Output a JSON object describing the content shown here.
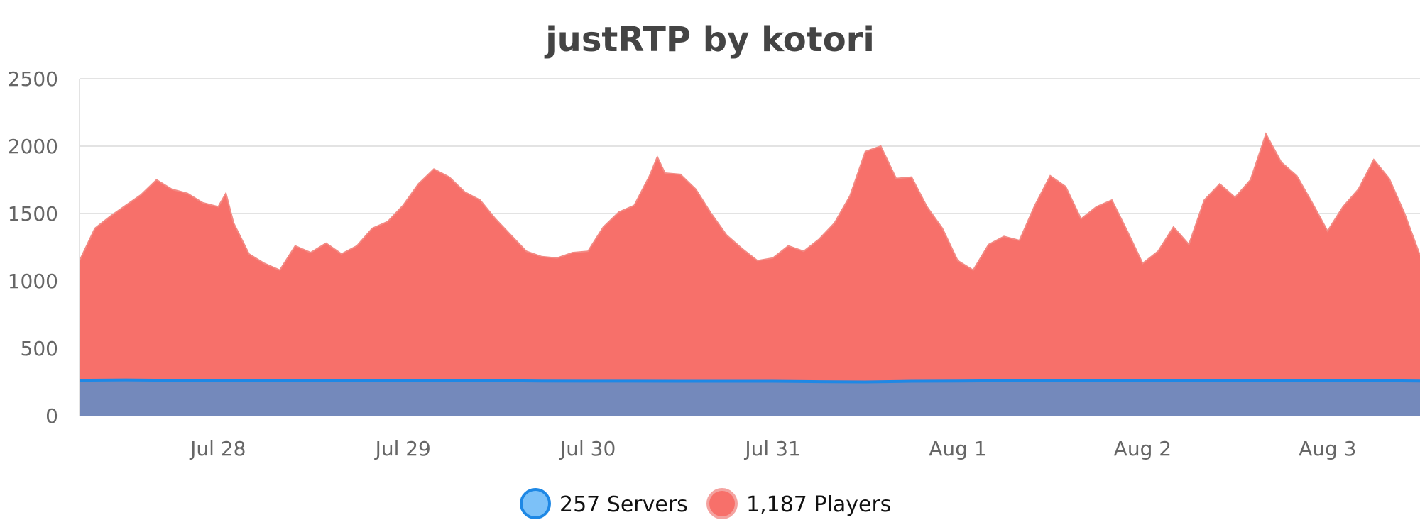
{
  "chart_data": {
    "type": "area",
    "title": "justRTP by kotori",
    "xlabel": "",
    "ylabel": "",
    "ylim": [
      0,
      2500
    ],
    "yticks": [
      0,
      500,
      1000,
      1500,
      2000,
      2500
    ],
    "xlim": [
      "2024-07-27T06:00",
      "2024-08-03T12:00"
    ],
    "xticks": [
      {
        "label": "Jul 28",
        "date": "2024-07-28T00:00"
      },
      {
        "label": "Jul 29",
        "date": "2024-07-29T00:00"
      },
      {
        "label": "Jul 30",
        "date": "2024-07-30T00:00"
      },
      {
        "label": "Jul 31",
        "date": "2024-07-31T00:00"
      },
      {
        "label": "Aug 1",
        "date": "2024-08-01T00:00"
      },
      {
        "label": "Aug 2",
        "date": "2024-08-02T00:00"
      },
      {
        "label": "Aug 3",
        "date": "2024-08-03T00:00"
      }
    ],
    "grid": true,
    "legend_position": "bottom-center",
    "series": [
      {
        "name": "1,187 Players",
        "color": "#f7706a",
        "points": [
          [
            "2024-07-27T06:00",
            1150
          ],
          [
            "2024-07-27T08:00",
            1390
          ],
          [
            "2024-07-27T10:00",
            1480
          ],
          [
            "2024-07-27T12:00",
            1560
          ],
          [
            "2024-07-27T14:00",
            1640
          ],
          [
            "2024-07-27T16:00",
            1750
          ],
          [
            "2024-07-27T18:00",
            1680
          ],
          [
            "2024-07-27T20:00",
            1650
          ],
          [
            "2024-07-27T22:00",
            1580
          ],
          [
            "2024-07-28T00:00",
            1550
          ],
          [
            "2024-07-28T01:00",
            1650
          ],
          [
            "2024-07-28T02:00",
            1430
          ],
          [
            "2024-07-28T04:00",
            1200
          ],
          [
            "2024-07-28T06:00",
            1130
          ],
          [
            "2024-07-28T08:00",
            1080
          ],
          [
            "2024-07-28T10:00",
            1260
          ],
          [
            "2024-07-28T12:00",
            1210
          ],
          [
            "2024-07-28T14:00",
            1280
          ],
          [
            "2024-07-28T16:00",
            1200
          ],
          [
            "2024-07-28T18:00",
            1260
          ],
          [
            "2024-07-28T20:00",
            1390
          ],
          [
            "2024-07-28T22:00",
            1440
          ],
          [
            "2024-07-29T00:00",
            1560
          ],
          [
            "2024-07-29T02:00",
            1720
          ],
          [
            "2024-07-29T04:00",
            1830
          ],
          [
            "2024-07-29T06:00",
            1770
          ],
          [
            "2024-07-29T08:00",
            1660
          ],
          [
            "2024-07-29T10:00",
            1600
          ],
          [
            "2024-07-29T12:00",
            1460
          ],
          [
            "2024-07-29T14:00",
            1340
          ],
          [
            "2024-07-29T16:00",
            1220
          ],
          [
            "2024-07-29T18:00",
            1180
          ],
          [
            "2024-07-29T20:00",
            1170
          ],
          [
            "2024-07-29T22:00",
            1210
          ],
          [
            "2024-07-30T00:00",
            1220
          ],
          [
            "2024-07-30T02:00",
            1400
          ],
          [
            "2024-07-30T04:00",
            1510
          ],
          [
            "2024-07-30T06:00",
            1560
          ],
          [
            "2024-07-30T08:00",
            1780
          ],
          [
            "2024-07-30T09:00",
            1920
          ],
          [
            "2024-07-30T10:00",
            1800
          ],
          [
            "2024-07-30T12:00",
            1790
          ],
          [
            "2024-07-30T14:00",
            1680
          ],
          [
            "2024-07-30T16:00",
            1500
          ],
          [
            "2024-07-30T18:00",
            1340
          ],
          [
            "2024-07-30T20:00",
            1240
          ],
          [
            "2024-07-30T22:00",
            1150
          ],
          [
            "2024-07-31T00:00",
            1170
          ],
          [
            "2024-07-31T02:00",
            1260
          ],
          [
            "2024-07-31T04:00",
            1220
          ],
          [
            "2024-07-31T06:00",
            1310
          ],
          [
            "2024-07-31T08:00",
            1430
          ],
          [
            "2024-07-31T10:00",
            1630
          ],
          [
            "2024-07-31T12:00",
            1960
          ],
          [
            "2024-07-31T14:00",
            2000
          ],
          [
            "2024-07-31T16:00",
            1760
          ],
          [
            "2024-07-31T18:00",
            1770
          ],
          [
            "2024-07-31T20:00",
            1550
          ],
          [
            "2024-07-31T22:00",
            1390
          ],
          [
            "2024-08-01T00:00",
            1150
          ],
          [
            "2024-08-01T02:00",
            1080
          ],
          [
            "2024-08-01T04:00",
            1270
          ],
          [
            "2024-08-01T06:00",
            1330
          ],
          [
            "2024-08-01T08:00",
            1300
          ],
          [
            "2024-08-01T10:00",
            1560
          ],
          [
            "2024-08-01T12:00",
            1780
          ],
          [
            "2024-08-01T14:00",
            1700
          ],
          [
            "2024-08-01T16:00",
            1460
          ],
          [
            "2024-08-01T18:00",
            1550
          ],
          [
            "2024-08-01T20:00",
            1600
          ],
          [
            "2024-08-01T22:00",
            1370
          ],
          [
            "2024-08-02T00:00",
            1130
          ],
          [
            "2024-08-02T02:00",
            1220
          ],
          [
            "2024-08-02T04:00",
            1400
          ],
          [
            "2024-08-02T06:00",
            1270
          ],
          [
            "2024-08-02T08:00",
            1600
          ],
          [
            "2024-08-02T10:00",
            1720
          ],
          [
            "2024-08-02T12:00",
            1620
          ],
          [
            "2024-08-02T14:00",
            1750
          ],
          [
            "2024-08-02T16:00",
            2090
          ],
          [
            "2024-08-02T18:00",
            1880
          ],
          [
            "2024-08-02T20:00",
            1780
          ],
          [
            "2024-08-02T22:00",
            1580
          ],
          [
            "2024-08-03T00:00",
            1370
          ],
          [
            "2024-08-03T02:00",
            1550
          ],
          [
            "2024-08-03T04:00",
            1680
          ],
          [
            "2024-08-03T06:00",
            1900
          ],
          [
            "2024-08-03T08:00",
            1760
          ],
          [
            "2024-08-03T10:00",
            1500
          ],
          [
            "2024-08-03T12:00",
            1190
          ]
        ]
      },
      {
        "name": "257 Servers",
        "color": "#7cc1f8",
        "points": [
          [
            "2024-07-27T06:00",
            262
          ],
          [
            "2024-07-27T12:00",
            265
          ],
          [
            "2024-07-27T18:00",
            262
          ],
          [
            "2024-07-28T00:00",
            258
          ],
          [
            "2024-07-28T06:00",
            260
          ],
          [
            "2024-07-28T12:00",
            263
          ],
          [
            "2024-07-28T18:00",
            262
          ],
          [
            "2024-07-29T00:00",
            260
          ],
          [
            "2024-07-29T06:00",
            258
          ],
          [
            "2024-07-29T12:00",
            260
          ],
          [
            "2024-07-29T18:00",
            257
          ],
          [
            "2024-07-30T00:00",
            256
          ],
          [
            "2024-07-30T06:00",
            256
          ],
          [
            "2024-07-30T12:00",
            255
          ],
          [
            "2024-07-30T18:00",
            255
          ],
          [
            "2024-07-31T00:00",
            255
          ],
          [
            "2024-07-31T06:00",
            252
          ],
          [
            "2024-07-31T12:00",
            250
          ],
          [
            "2024-07-31T18:00",
            255
          ],
          [
            "2024-08-01T00:00",
            257
          ],
          [
            "2024-08-01T06:00",
            259
          ],
          [
            "2024-08-01T12:00",
            260
          ],
          [
            "2024-08-01T18:00",
            260
          ],
          [
            "2024-08-02T00:00",
            258
          ],
          [
            "2024-08-02T06:00",
            258
          ],
          [
            "2024-08-02T12:00",
            262
          ],
          [
            "2024-08-02T18:00",
            262
          ],
          [
            "2024-08-03T00:00",
            262
          ],
          [
            "2024-08-03T06:00",
            260
          ],
          [
            "2024-08-03T12:00",
            257
          ]
        ]
      }
    ],
    "legend": [
      {
        "label": "257 Servers",
        "fill": "#7cc1f8",
        "stroke": "#1e88e5"
      },
      {
        "label": "1,187 Players",
        "fill": "#f7706a",
        "stroke": "#f4a3a0"
      }
    ]
  }
}
